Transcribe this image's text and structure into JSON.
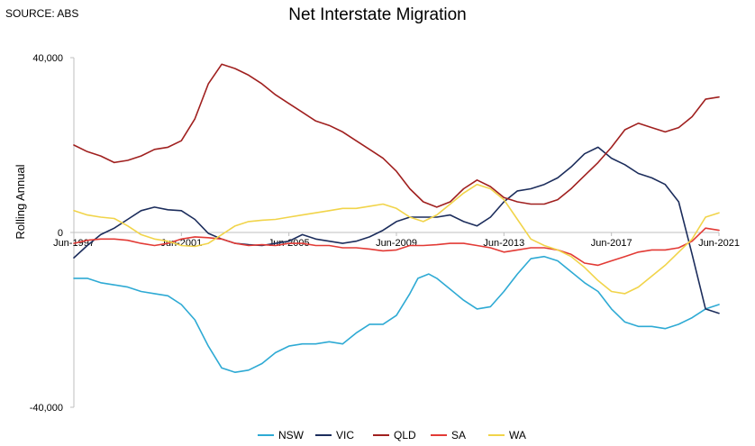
{
  "source": "SOURCE: ABS",
  "chart_data": {
    "type": "line",
    "title": "Net Interstate Migration",
    "xlabel": "",
    "ylabel": "Rolling Annual",
    "ylim": [
      -40000,
      40000
    ],
    "y_ticks": [
      40000,
      0,
      -40000
    ],
    "y_tick_labels": [
      "40,000",
      "0",
      "-40,000"
    ],
    "x_ticks": [
      1997.5,
      2001.5,
      2005.5,
      2009.5,
      2013.5,
      2017.5,
      2021.5
    ],
    "x_tick_labels": [
      "Jun-1997",
      "Jun-2001",
      "Jun-2005",
      "Jun-2009",
      "Jun-2013",
      "Jun-2017",
      "Jun-2021"
    ],
    "xlim": [
      1997.5,
      2021.5
    ],
    "grid": false,
    "legend_position": "bottom",
    "series": [
      {
        "name": "NSW",
        "color": "#2eaad4",
        "points": [
          [
            1997.5,
            -10500
          ],
          [
            1998.0,
            -10500
          ],
          [
            1998.5,
            -11500
          ],
          [
            1999.0,
            -12000
          ],
          [
            1999.5,
            -12500
          ],
          [
            2000.0,
            -13500
          ],
          [
            2000.5,
            -14000
          ],
          [
            2001.0,
            -14500
          ],
          [
            2001.5,
            -16500
          ],
          [
            2002.0,
            -20000
          ],
          [
            2002.5,
            -26000
          ],
          [
            2003.0,
            -31000
          ],
          [
            2003.5,
            -32000
          ],
          [
            2004.0,
            -31500
          ],
          [
            2004.5,
            -30000
          ],
          [
            2005.0,
            -27500
          ],
          [
            2005.5,
            -26000
          ],
          [
            2006.0,
            -25500
          ],
          [
            2006.5,
            -25500
          ],
          [
            2007.0,
            -25000
          ],
          [
            2007.5,
            -25500
          ],
          [
            2008.0,
            -23000
          ],
          [
            2008.5,
            -21000
          ],
          [
            2009.0,
            -21000
          ],
          [
            2009.5,
            -19000
          ],
          [
            2010.0,
            -14000
          ],
          [
            2010.3,
            -10500
          ],
          [
            2010.7,
            -9500
          ],
          [
            2011.0,
            -10500
          ],
          [
            2011.5,
            -13000
          ],
          [
            2012.0,
            -15500
          ],
          [
            2012.5,
            -17500
          ],
          [
            2013.0,
            -17000
          ],
          [
            2013.5,
            -13500
          ],
          [
            2014.0,
            -9500
          ],
          [
            2014.5,
            -6000
          ],
          [
            2015.0,
            -5500
          ],
          [
            2015.5,
            -6500
          ],
          [
            2016.0,
            -9000
          ],
          [
            2016.5,
            -11500
          ],
          [
            2017.0,
            -13500
          ],
          [
            2017.5,
            -17500
          ],
          [
            2018.0,
            -20500
          ],
          [
            2018.5,
            -21500
          ],
          [
            2019.0,
            -21500
          ],
          [
            2019.5,
            -22000
          ],
          [
            2020.0,
            -21000
          ],
          [
            2020.5,
            -19500
          ],
          [
            2021.0,
            -17500
          ],
          [
            2021.5,
            -16500
          ]
        ]
      },
      {
        "name": "VIC",
        "color": "#1c2d5c",
        "points": [
          [
            1997.5,
            -5800
          ],
          [
            1998.0,
            -3000
          ],
          [
            1998.5,
            -500
          ],
          [
            1999.0,
            1000
          ],
          [
            1999.5,
            3000
          ],
          [
            2000.0,
            5000
          ],
          [
            2000.5,
            5800
          ],
          [
            2001.0,
            5200
          ],
          [
            2001.5,
            5000
          ],
          [
            2002.0,
            3000
          ],
          [
            2002.5,
            -200
          ],
          [
            2003.0,
            -1500
          ],
          [
            2003.5,
            -2500
          ],
          [
            2004.0,
            -2800
          ],
          [
            2004.5,
            -3000
          ],
          [
            2005.0,
            -2500
          ],
          [
            2005.5,
            -2000
          ],
          [
            2006.0,
            -500
          ],
          [
            2006.5,
            -1500
          ],
          [
            2007.0,
            -2000
          ],
          [
            2007.5,
            -2500
          ],
          [
            2008.0,
            -2000
          ],
          [
            2008.5,
            -1000
          ],
          [
            2009.0,
            500
          ],
          [
            2009.5,
            2500
          ],
          [
            2010.0,
            3500
          ],
          [
            2010.5,
            3500
          ],
          [
            2011.0,
            3500
          ],
          [
            2011.5,
            4000
          ],
          [
            2012.0,
            2500
          ],
          [
            2012.5,
            1500
          ],
          [
            2013.0,
            3500
          ],
          [
            2013.5,
            7000
          ],
          [
            2014.0,
            9500
          ],
          [
            2014.5,
            10000
          ],
          [
            2015.0,
            11000
          ],
          [
            2015.5,
            12500
          ],
          [
            2016.0,
            15000
          ],
          [
            2016.5,
            18000
          ],
          [
            2017.0,
            19500
          ],
          [
            2017.5,
            17000
          ],
          [
            2018.0,
            15500
          ],
          [
            2018.5,
            13500
          ],
          [
            2019.0,
            12500
          ],
          [
            2019.5,
            11000
          ],
          [
            2020.0,
            7000
          ],
          [
            2020.5,
            -5000
          ],
          [
            2021.0,
            -17500
          ],
          [
            2021.5,
            -18500
          ]
        ]
      },
      {
        "name": "QLD",
        "color": "#a0201f",
        "points": [
          [
            1997.5,
            20000
          ],
          [
            1998.0,
            18500
          ],
          [
            1998.5,
            17500
          ],
          [
            1999.0,
            16000
          ],
          [
            1999.5,
            16500
          ],
          [
            2000.0,
            17500
          ],
          [
            2000.5,
            19000
          ],
          [
            2001.0,
            19500
          ],
          [
            2001.5,
            21000
          ],
          [
            2002.0,
            26000
          ],
          [
            2002.5,
            34000
          ],
          [
            2003.0,
            38500
          ],
          [
            2003.5,
            37500
          ],
          [
            2004.0,
            36000
          ],
          [
            2004.5,
            34000
          ],
          [
            2005.0,
            31500
          ],
          [
            2005.5,
            29500
          ],
          [
            2006.0,
            27500
          ],
          [
            2006.5,
            25500
          ],
          [
            2007.0,
            24500
          ],
          [
            2007.5,
            23000
          ],
          [
            2008.0,
            21000
          ],
          [
            2008.5,
            19000
          ],
          [
            2009.0,
            17000
          ],
          [
            2009.5,
            14000
          ],
          [
            2010.0,
            10000
          ],
          [
            2010.5,
            7000
          ],
          [
            2011.0,
            5800
          ],
          [
            2011.5,
            7000
          ],
          [
            2012.0,
            10000
          ],
          [
            2012.5,
            12000
          ],
          [
            2013.0,
            10500
          ],
          [
            2013.5,
            8000
          ],
          [
            2014.0,
            7000
          ],
          [
            2014.5,
            6500
          ],
          [
            2015.0,
            6500
          ],
          [
            2015.5,
            7500
          ],
          [
            2016.0,
            10000
          ],
          [
            2016.5,
            13000
          ],
          [
            2017.0,
            16000
          ],
          [
            2017.5,
            19500
          ],
          [
            2018.0,
            23500
          ],
          [
            2018.5,
            25000
          ],
          [
            2019.0,
            24000
          ],
          [
            2019.5,
            23000
          ],
          [
            2020.0,
            24000
          ],
          [
            2020.5,
            26500
          ],
          [
            2021.0,
            30500
          ],
          [
            2021.5,
            31000
          ]
        ]
      },
      {
        "name": "SA",
        "color": "#e23a35",
        "points": [
          [
            1997.5,
            -2500
          ],
          [
            1998.0,
            -1800
          ],
          [
            1998.5,
            -1500
          ],
          [
            1999.0,
            -1500
          ],
          [
            1999.5,
            -1800
          ],
          [
            2000.0,
            -2500
          ],
          [
            2000.5,
            -3000
          ],
          [
            2001.0,
            -2500
          ],
          [
            2001.5,
            -1500
          ],
          [
            2002.0,
            -1000
          ],
          [
            2002.5,
            -1200
          ],
          [
            2003.0,
            -1500
          ],
          [
            2003.5,
            -2500
          ],
          [
            2004.0,
            -3000
          ],
          [
            2004.5,
            -2800
          ],
          [
            2005.0,
            -3000
          ],
          [
            2005.5,
            -2500
          ],
          [
            2006.0,
            -2500
          ],
          [
            2006.5,
            -3000
          ],
          [
            2007.0,
            -3000
          ],
          [
            2007.5,
            -3500
          ],
          [
            2008.0,
            -3500
          ],
          [
            2008.5,
            -3800
          ],
          [
            2009.0,
            -4200
          ],
          [
            2009.5,
            -4000
          ],
          [
            2010.0,
            -3000
          ],
          [
            2010.5,
            -3000
          ],
          [
            2011.0,
            -2800
          ],
          [
            2011.5,
            -2500
          ],
          [
            2012.0,
            -2500
          ],
          [
            2012.5,
            -3000
          ],
          [
            2013.0,
            -3500
          ],
          [
            2013.5,
            -4500
          ],
          [
            2014.0,
            -4000
          ],
          [
            2014.5,
            -3500
          ],
          [
            2015.0,
            -3500
          ],
          [
            2015.5,
            -4000
          ],
          [
            2016.0,
            -5000
          ],
          [
            2016.5,
            -7000
          ],
          [
            2017.0,
            -7500
          ],
          [
            2017.5,
            -6500
          ],
          [
            2018.0,
            -5500
          ],
          [
            2018.5,
            -4500
          ],
          [
            2019.0,
            -4000
          ],
          [
            2019.5,
            -4000
          ],
          [
            2020.0,
            -3500
          ],
          [
            2020.5,
            -2000
          ],
          [
            2021.0,
            1000
          ],
          [
            2021.5,
            500
          ]
        ]
      },
      {
        "name": "WA",
        "color": "#f1d44a",
        "points": [
          [
            1997.5,
            5000
          ],
          [
            1998.0,
            4000
          ],
          [
            1998.5,
            3500
          ],
          [
            1999.0,
            3200
          ],
          [
            1999.5,
            1500
          ],
          [
            2000.0,
            -500
          ],
          [
            2000.5,
            -1500
          ],
          [
            2001.0,
            -2000
          ],
          [
            2001.5,
            -3000
          ],
          [
            2002.0,
            -3200
          ],
          [
            2002.5,
            -2500
          ],
          [
            2003.0,
            -500
          ],
          [
            2003.5,
            1500
          ],
          [
            2004.0,
            2500
          ],
          [
            2004.5,
            2800
          ],
          [
            2005.0,
            3000
          ],
          [
            2005.5,
            3500
          ],
          [
            2006.0,
            4000
          ],
          [
            2006.5,
            4500
          ],
          [
            2007.0,
            5000
          ],
          [
            2007.5,
            5500
          ],
          [
            2008.0,
            5500
          ],
          [
            2008.5,
            6000
          ],
          [
            2009.0,
            6500
          ],
          [
            2009.5,
            5500
          ],
          [
            2010.0,
            3500
          ],
          [
            2010.5,
            2500
          ],
          [
            2011.0,
            4000
          ],
          [
            2011.5,
            6500
          ],
          [
            2012.0,
            9000
          ],
          [
            2012.5,
            11000
          ],
          [
            2013.0,
            10000
          ],
          [
            2013.5,
            7500
          ],
          [
            2014.0,
            3000
          ],
          [
            2014.5,
            -1500
          ],
          [
            2015.0,
            -3000
          ],
          [
            2015.5,
            -4000
          ],
          [
            2016.0,
            -5500
          ],
          [
            2016.5,
            -8000
          ],
          [
            2017.0,
            -11000
          ],
          [
            2017.5,
            -13500
          ],
          [
            2018.0,
            -14000
          ],
          [
            2018.5,
            -12500
          ],
          [
            2019.0,
            -10000
          ],
          [
            2019.5,
            -7500
          ],
          [
            2020.0,
            -4500
          ],
          [
            2020.5,
            -1500
          ],
          [
            2021.0,
            3500
          ],
          [
            2021.5,
            4500
          ]
        ]
      }
    ]
  }
}
